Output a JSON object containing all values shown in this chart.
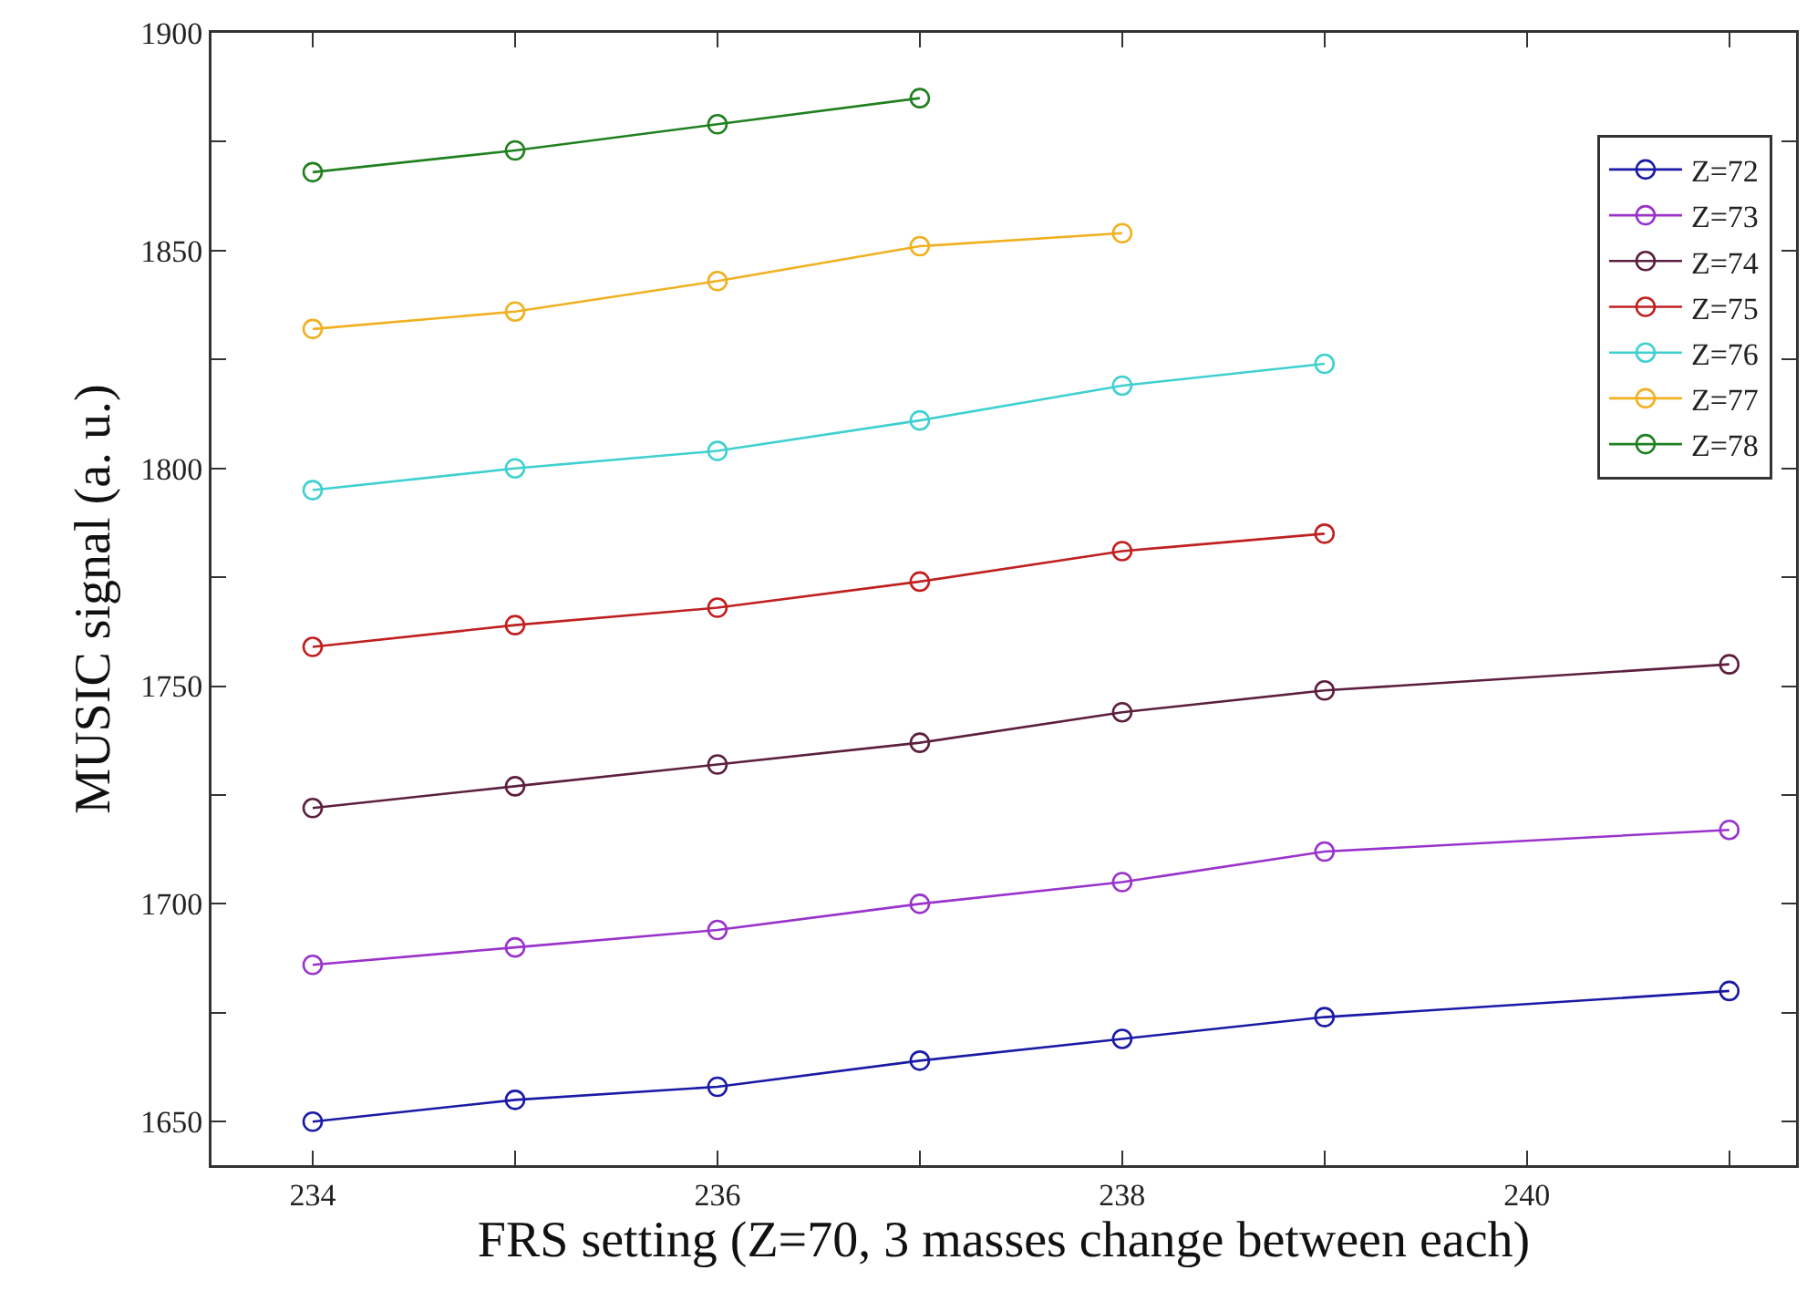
{
  "chart_data": {
    "type": "line",
    "xlabel": "FRS setting (Z=70, 3 masses change between each)",
    "ylabel": "MUSIC signal (a. u.)",
    "xlim": [
      233.5,
      241.33
    ],
    "xticks": [
      234,
      {
        "value": 235,
        "label": null
      },
      236,
      {
        "value": 237,
        "label": null
      },
      238,
      {
        "value": 239,
        "label": null
      },
      240,
      {
        "value": 241,
        "label": null
      }
    ],
    "ylim": [
      1640,
      1900
    ],
    "yticks": [
      1650,
      {
        "value": 1675,
        "label": null
      },
      1700,
      {
        "value": 1725,
        "label": null
      },
      1750,
      {
        "value": 1775,
        "label": null
      },
      1800,
      {
        "value": 1825,
        "label": null
      },
      1850,
      {
        "value": 1875,
        "label": null
      },
      1900
    ],
    "grid": false,
    "legend": "top right",
    "marker": "circle",
    "line_style": "solid",
    "series": [
      {
        "name": "Z=72",
        "color": "#1a1aa6",
        "x": [
          234,
          235,
          236,
          237,
          238,
          239,
          241
        ],
        "values": [
          1650,
          1655,
          1658,
          1664,
          1669,
          1674,
          1680
        ]
      },
      {
        "name": "Z=73",
        "color": "#9933cc",
        "x": [
          234,
          235,
          236,
          237,
          238,
          239,
          241
        ],
        "values": [
          1686,
          1690,
          1694,
          1700,
          1705,
          1712,
          1717
        ]
      },
      {
        "name": "Z=74",
        "color": "#5c1f3f",
        "x": [
          234,
          235,
          236,
          237,
          238,
          239,
          241
        ],
        "values": [
          1722,
          1727,
          1732,
          1737,
          1744,
          1749,
          1755
        ]
      },
      {
        "name": "Z=75",
        "color": "#c02020",
        "x": [
          234,
          235,
          236,
          237,
          238,
          239
        ],
        "values": [
          1759,
          1764,
          1768,
          1774,
          1781,
          1785
        ]
      },
      {
        "name": "Z=76",
        "color": "#40d0d0",
        "x": [
          234,
          235,
          236,
          237,
          238,
          239
        ],
        "values": [
          1795,
          1800,
          1804,
          1811,
          1819,
          1824
        ]
      },
      {
        "name": "Z=77",
        "color": "#f0b020",
        "x": [
          234,
          235,
          236,
          237,
          238
        ],
        "values": [
          1832,
          1836,
          1843,
          1851,
          1854
        ]
      },
      {
        "name": "Z=78",
        "color": "#208020",
        "x": [
          234,
          235,
          236,
          237
        ],
        "values": [
          1868,
          1873,
          1879,
          1885
        ]
      }
    ]
  }
}
